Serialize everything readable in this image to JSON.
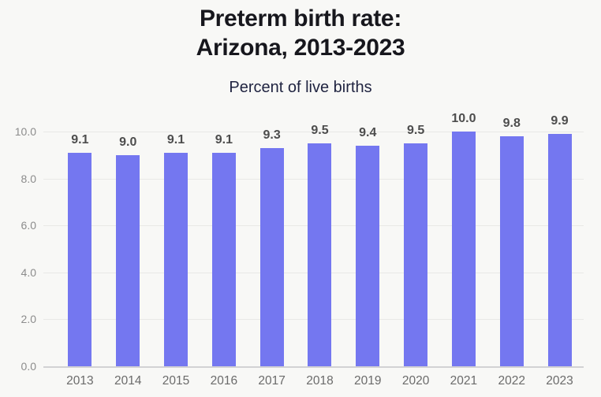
{
  "page": {
    "background": "#f8f8f6"
  },
  "header": {
    "title_line1": "Preterm birth rate:",
    "title_line2": "Arizona, 2013-2023",
    "subtitle": "Percent of live births"
  },
  "chart_data": {
    "type": "bar",
    "title": "Preterm birth rate: Arizona, 2013-2023",
    "subtitle": "Percent of live births",
    "categories": [
      "2013",
      "2014",
      "2015",
      "2016",
      "2017",
      "2018",
      "2019",
      "2020",
      "2021",
      "2022",
      "2023"
    ],
    "values": [
      9.1,
      9.0,
      9.1,
      9.1,
      9.3,
      9.5,
      9.4,
      9.5,
      10.0,
      9.8,
      9.9
    ],
    "value_labels": [
      "9.1",
      "9.0",
      "9.1",
      "9.1",
      "9.3",
      "9.5",
      "9.4",
      "9.5",
      "10.0",
      "9.8",
      "9.9"
    ],
    "xlabel": "",
    "ylabel": "",
    "ylim": [
      0,
      10
    ],
    "yticks": [
      0.0,
      2.0,
      4.0,
      6.0,
      8.0,
      10.0
    ],
    "ytick_labels": [
      "0.0",
      "2.0",
      "4.0",
      "6.0",
      "8.0",
      "10.0"
    ],
    "grid": true,
    "legend": false,
    "bar_color": "#7477f0",
    "value_label_color": "#4d4d4d",
    "ytick_color": "#8c8c8c",
    "xtick_color": "#6b6b6b",
    "gridline_color": "#e9e9e6",
    "baseline_color": "#d2d2d4"
  }
}
